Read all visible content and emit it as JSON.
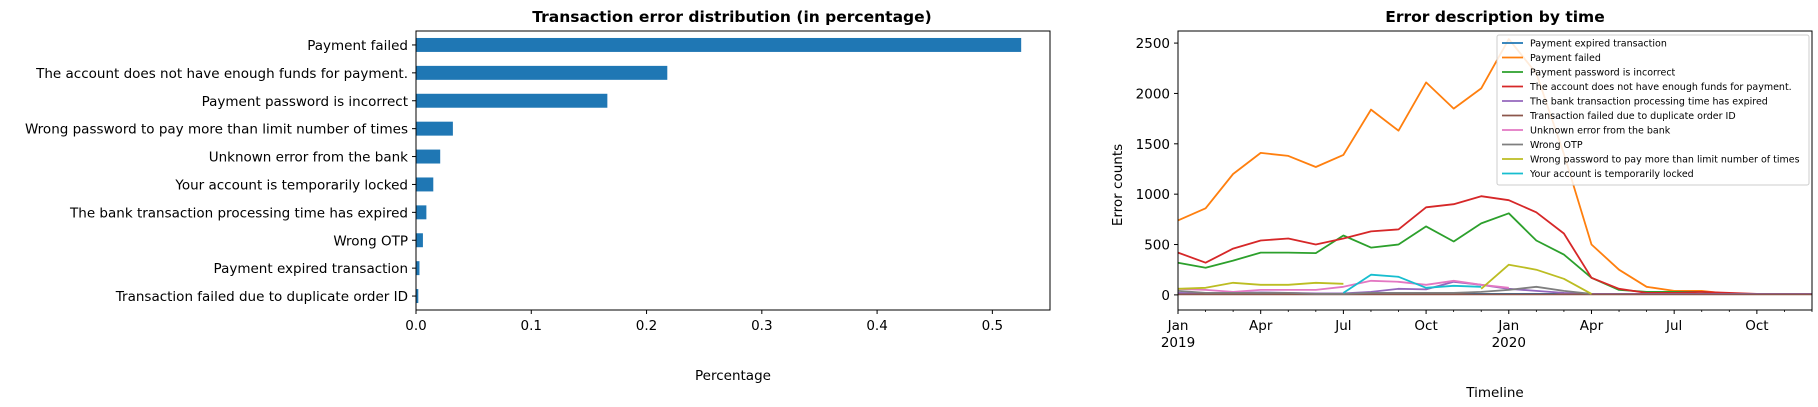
{
  "chart_data": [
    {
      "type": "bar",
      "orientation": "horizontal",
      "title": "Transaction error distribution (in percentage)",
      "xlabel": "Percentage",
      "ylabel": "",
      "xlim": [
        0,
        0.55
      ],
      "xticks": [
        "0.0",
        "0.1",
        "0.2",
        "0.3",
        "0.4",
        "0.5"
      ],
      "grid": false,
      "color": "#1f77b4",
      "categories": [
        "Payment failed",
        "The account does not have enough funds for payment.",
        "Payment password is incorrect",
        "Wrong password to pay more than limit number of times",
        "Unknown error from the bank",
        "Your account is temporarily locked",
        "The bank transaction processing time has expired",
        "Wrong OTP",
        "Payment expired transaction",
        "Transaction failed due to duplicate order ID"
      ],
      "values": [
        0.525,
        0.218,
        0.166,
        0.032,
        0.021,
        0.015,
        0.009,
        0.006,
        0.003,
        0.002
      ]
    },
    {
      "type": "line",
      "title": "Error description by time",
      "xlabel": "Timeline",
      "ylabel": "Error counts",
      "ylim": [
        -150,
        2620
      ],
      "yticks": [
        "0",
        "500",
        "1000",
        "1500",
        "2000",
        "2500"
      ],
      "xticks": [
        {
          "label": "Jan",
          "sub": "2019"
        },
        {
          "label": "Apr",
          "sub": ""
        },
        {
          "label": "Jul",
          "sub": ""
        },
        {
          "label": "Oct",
          "sub": ""
        },
        {
          "label": "Jan",
          "sub": "2020"
        },
        {
          "label": "Apr",
          "sub": ""
        },
        {
          "label": "Jul",
          "sub": ""
        },
        {
          "label": "Oct",
          "sub": ""
        }
      ],
      "legend_position": "top-right",
      "grid": false,
      "x": [
        "2019-01",
        "2019-02",
        "2019-03",
        "2019-04",
        "2019-05",
        "2019-06",
        "2019-07",
        "2019-08",
        "2019-09",
        "2019-10",
        "2019-11",
        "2019-12",
        "2020-01",
        "2020-02",
        "2020-03",
        "2020-04",
        "2020-05",
        "2020-06",
        "2020-07",
        "2020-08",
        "2020-09",
        "2020-10",
        "2020-11",
        "2020-12"
      ],
      "series": [
        {
          "name": "Payment expired transaction",
          "color": "#1f77b4",
          "values": [
            10,
            10,
            10,
            10,
            10,
            10,
            10,
            10,
            10,
            10,
            10,
            10,
            10,
            10,
            10,
            10,
            10,
            10,
            10,
            10,
            10,
            10,
            10,
            10
          ]
        },
        {
          "name": "Payment failed",
          "color": "#ff7f0e",
          "values": [
            740,
            860,
            1200,
            1410,
            1380,
            1270,
            1390,
            1840,
            1630,
            2110,
            1850,
            2050,
            2540,
            2200,
            1400,
            500,
            250,
            80,
            40,
            40,
            10,
            10,
            10,
            10
          ]
        },
        {
          "name": "Payment password is incorrect",
          "color": "#2ca02c",
          "values": [
            320,
            270,
            340,
            420,
            420,
            415,
            590,
            470,
            500,
            680,
            530,
            710,
            810,
            540,
            400,
            170,
            50,
            30,
            30,
            30,
            10,
            10,
            10,
            10
          ]
        },
        {
          "name": "The account does not have enough funds for payment.",
          "color": "#d62728",
          "values": [
            420,
            320,
            460,
            540,
            560,
            500,
            560,
            630,
            650,
            870,
            900,
            980,
            940,
            820,
            610,
            170,
            60,
            20,
            20,
            30,
            20,
            10,
            10,
            10
          ]
        },
        {
          "name": "The bank transaction processing time has expired",
          "color": "#9467bd",
          "values": [
            20,
            15,
            20,
            25,
            20,
            15,
            15,
            30,
            60,
            55,
            130,
            100,
            60,
            40,
            20,
            10,
            10,
            10,
            10,
            10,
            10,
            10,
            10,
            10
          ]
        },
        {
          "name": "Transaction failed due to duplicate order ID",
          "color": "#8c564b",
          "values": [
            5,
            5,
            5,
            5,
            5,
            5,
            5,
            5,
            5,
            5,
            5,
            5,
            5,
            5,
            5,
            5,
            5,
            5,
            5,
            5,
            5,
            5,
            5,
            5
          ]
        },
        {
          "name": "Unknown error from the bank",
          "color": "#e377c2",
          "values": [
            60,
            50,
            30,
            50,
            50,
            50,
            80,
            140,
            130,
            100,
            140,
            100,
            70,
            null,
            null,
            null,
            null,
            null,
            null,
            null,
            null,
            null,
            null,
            null
          ]
        },
        {
          "name": "Wrong OTP",
          "color": "#7f7f7f",
          "values": [
            40,
            20,
            20,
            20,
            20,
            10,
            10,
            20,
            20,
            20,
            20,
            30,
            50,
            80,
            40,
            10,
            null,
            null,
            null,
            null,
            null,
            null,
            null,
            null
          ]
        },
        {
          "name": "Wrong password to pay more than limit number of times",
          "color": "#bcbd22",
          "values": [
            60,
            70,
            120,
            100,
            100,
            120,
            110,
            null,
            null,
            null,
            null,
            60,
            300,
            250,
            160,
            10,
            null,
            null,
            null,
            null,
            null,
            null,
            null,
            null
          ]
        },
        {
          "name": "Your account is temporarily locked",
          "color": "#17becf",
          "values": [
            null,
            null,
            null,
            null,
            null,
            null,
            20,
            200,
            180,
            70,
            90,
            80,
            null,
            null,
            null,
            null,
            null,
            null,
            null,
            null,
            null,
            null,
            null,
            null
          ]
        }
      ]
    }
  ]
}
